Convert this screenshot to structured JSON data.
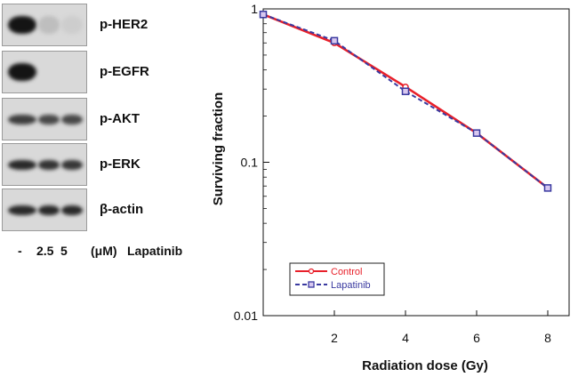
{
  "blot": {
    "rows": [
      {
        "label": "p-HER2",
        "lanes": [
          0.95,
          0.12,
          0.05
        ]
      },
      {
        "label": "p-EGFR",
        "lanes": [
          0.95,
          0.0,
          0.0
        ]
      },
      {
        "label": "p-AKT",
        "lanes": [
          0.75,
          0.7,
          0.7
        ]
      },
      {
        "label": "p-ERK",
        "lanes": [
          0.85,
          0.8,
          0.78
        ]
      },
      {
        "label": "β-actin",
        "lanes": [
          0.85,
          0.85,
          0.85
        ]
      }
    ],
    "lane_labels": [
      "-",
      "2.5",
      "5"
    ],
    "unit_label": "(μM)",
    "drug_label": "Lapatinib"
  },
  "chart_data": {
    "type": "line",
    "xlabel": "Radiation dose (Gy)",
    "ylabel": "Surviving fraction",
    "xlim": [
      0,
      8.6
    ],
    "ylim": [
      0.01,
      1
    ],
    "yscale": "log",
    "x_ticks": [
      "2",
      "4",
      "6",
      "8"
    ],
    "y_ticks": [
      "0.01",
      "0.1",
      "1"
    ],
    "grid": false,
    "legend_position": "bottom-left",
    "series": [
      {
        "name": "Control",
        "color": "#e8202a",
        "marker": "circle",
        "x": [
          0,
          2,
          4,
          6,
          8
        ],
        "y": [
          0.92,
          0.6,
          0.31,
          0.155,
          0.068
        ]
      },
      {
        "name": "Lapatinib",
        "color": "#3a3aa0",
        "marker": "square",
        "x": [
          0,
          2,
          4,
          6,
          8
        ],
        "y": [
          0.92,
          0.62,
          0.29,
          0.155,
          0.068
        ]
      }
    ]
  }
}
